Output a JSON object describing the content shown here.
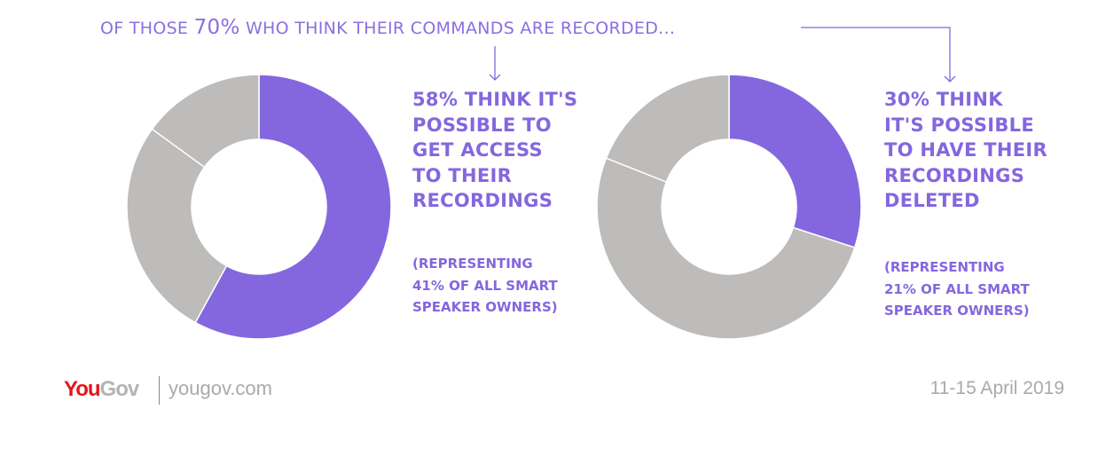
{
  "chart_data": [
    {
      "type": "pie",
      "variant": "donut",
      "categories": [
        "Think it's possible to get access",
        "Other",
        "Other"
      ],
      "values": [
        58,
        27,
        15
      ],
      "colors": [
        "#8467de",
        "#bdbcbb",
        "#bdbcbb"
      ],
      "headline": [
        "58% THINK IT'S",
        "POSSIBLE TO",
        "GET ACCESS",
        "TO THEIR",
        "RECORDINGS"
      ],
      "note": [
        "(REPRESENTING",
        "41% OF ALL SMART",
        "SPEAKER OWNERS)"
      ]
    },
    {
      "type": "pie",
      "variant": "donut",
      "categories": [
        "Think it's possible to have recordings deleted",
        "Other",
        "Other"
      ],
      "values": [
        30,
        51,
        19
      ],
      "colors": [
        "#8467de",
        "#bdbcbb",
        "#bdbcbb"
      ],
      "headline": [
        "30% THINK",
        "IT'S POSSIBLE",
        "TO HAVE THEIR",
        "RECORDINGS",
        "DELETED"
      ],
      "note": [
        "(REPRESENTING",
        "21% OF ALL SMART",
        "SPEAKER OWNERS)"
      ]
    }
  ],
  "title": {
    "pre": "OF THOSE ",
    "pct": "70%",
    "post": " WHO THINK THEIR COMMANDS ARE RECORDED..."
  },
  "footer": {
    "logo_you": "You",
    "logo_gov": "Gov",
    "site": "yougov.com",
    "date": "11-15 April 2019"
  }
}
